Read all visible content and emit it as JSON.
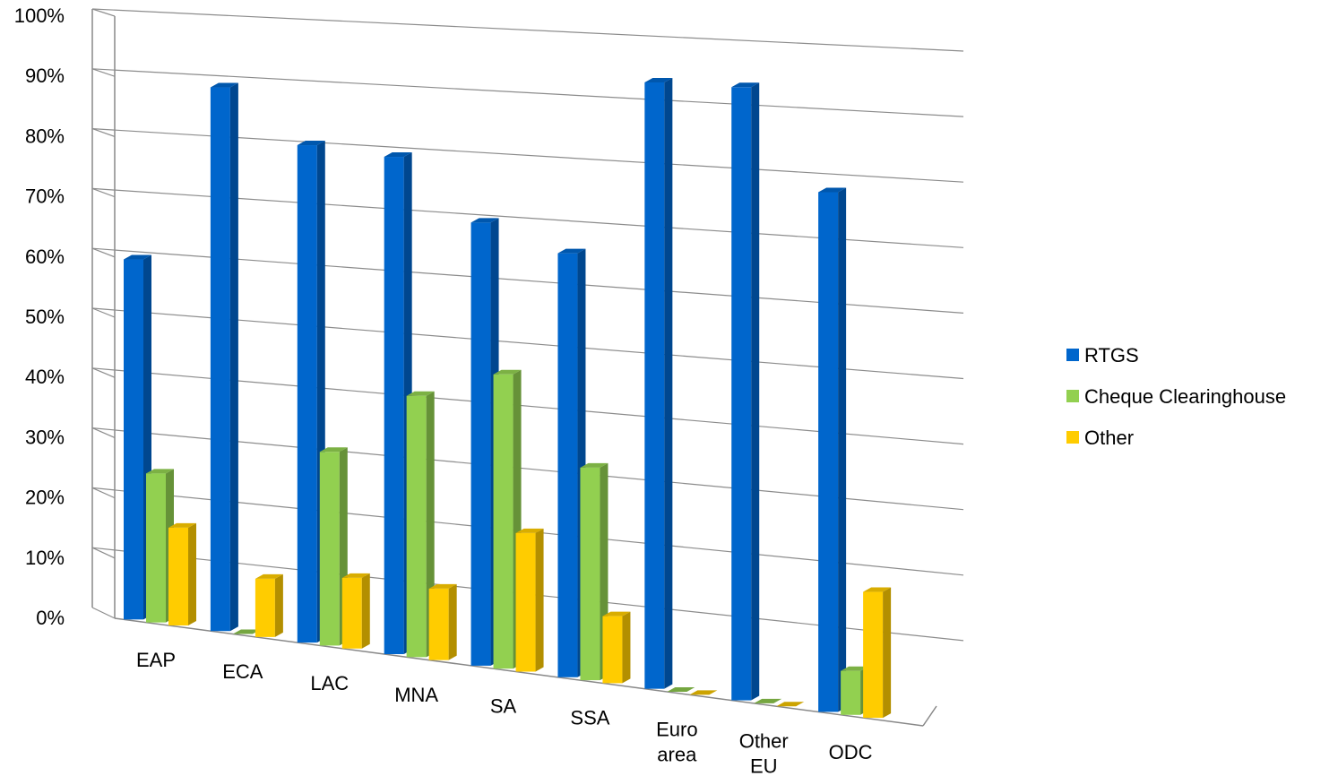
{
  "chart_data": {
    "type": "bar",
    "categories": [
      [
        "EAP"
      ],
      [
        "ECA"
      ],
      [
        "LAC"
      ],
      [
        "MNA"
      ],
      [
        "SA"
      ],
      [
        "SSA"
      ],
      [
        "Euro",
        "area"
      ],
      [
        "Other",
        "EU"
      ],
      [
        "ODC"
      ]
    ],
    "series": [
      {
        "name": "RTGS",
        "color": "#0066CC",
        "values": [
          63,
          94,
          85,
          84,
          74,
          70,
          99,
          99,
          83
        ]
      },
      {
        "name": "Cheque Clearinghouse",
        "color": "#92D050",
        "values": [
          26,
          0,
          33,
          44,
          49,
          35,
          0,
          0,
          7
        ]
      },
      {
        "name": "Other",
        "color": "#FFCC00",
        "values": [
          17,
          10,
          12,
          12,
          23,
          11,
          0,
          0,
          20
        ]
      }
    ],
    "y_ticks": [
      "0%",
      "10%",
      "20%",
      "30%",
      "40%",
      "50%",
      "60%",
      "70%",
      "80%",
      "90%",
      "100%"
    ],
    "ylim": [
      0,
      100
    ],
    "grid": true,
    "legend_position": "right",
    "style": "3d-clustered-column"
  }
}
